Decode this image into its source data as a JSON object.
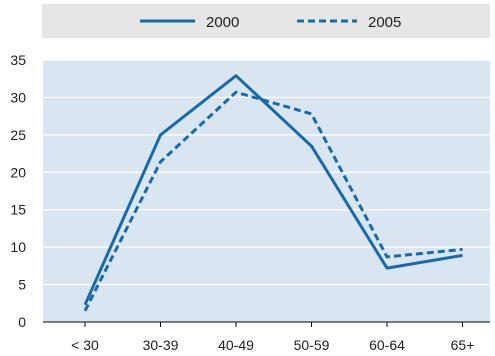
{
  "chart_data": {
    "type": "line",
    "categories": [
      "< 30",
      "30-39",
      "40-49",
      "50-59",
      "60-64",
      "65+"
    ],
    "series": [
      {
        "name": "2000",
        "values": [
          2.3,
          25.0,
          32.9,
          23.5,
          7.2,
          8.9
        ],
        "style": "solid"
      },
      {
        "name": "2005",
        "values": [
          1.5,
          21.4,
          30.7,
          27.8,
          8.7,
          9.7
        ],
        "style": "dashed"
      }
    ],
    "ylim": [
      0,
      35
    ],
    "yticks": [
      0,
      5,
      10,
      15,
      20,
      25,
      30,
      35
    ],
    "grid": true,
    "legend": "top",
    "colors": {
      "line": "#1a6aa8",
      "plot_background": "#d9e6f2",
      "legend_background": "#e6e6e6",
      "grid": "#ffffff"
    }
  }
}
